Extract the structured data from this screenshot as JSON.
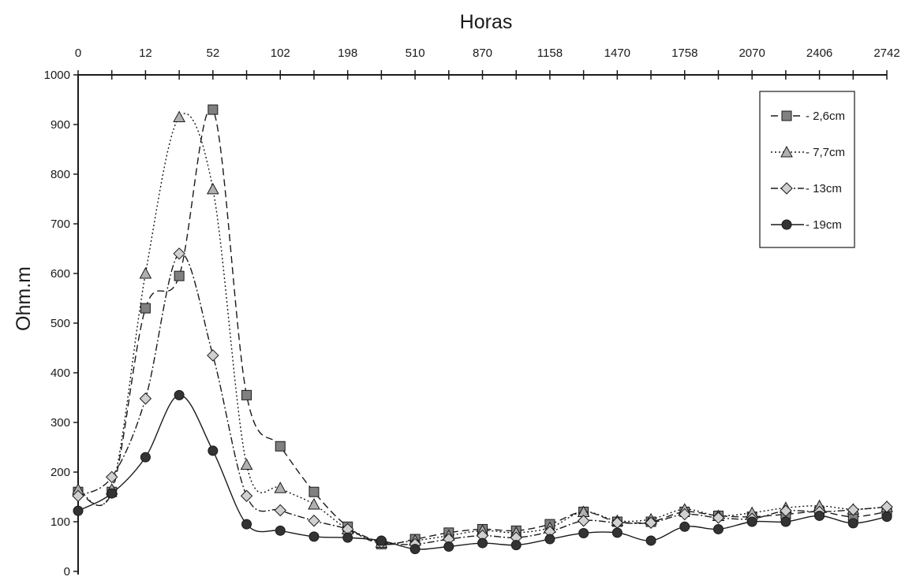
{
  "chart_data": {
    "type": "line",
    "title": "",
    "xlabel": "Horas",
    "ylabel": "Ohm.m",
    "x_tick_labels": [
      "0",
      "12",
      "52",
      "102",
      "198",
      "510",
      "870",
      "1158",
      "1470",
      "1758",
      "2070",
      "2406",
      "2742"
    ],
    "ylim": [
      0,
      1000
    ],
    "y_ticks": [
      0,
      100,
      200,
      300,
      400,
      500,
      600,
      700,
      800,
      900,
      1000
    ],
    "grid": false,
    "legend_position": "top-right",
    "series": [
      {
        "name": "- 2,6cm",
        "marker": "square",
        "dash": "dashed",
        "color": "#808080",
        "values": [
          160,
          160,
          530,
          595,
          930,
          355,
          252,
          160,
          90,
          55,
          65,
          78,
          85,
          82,
          95,
          120,
          100,
          100,
          120,
          112,
          110,
          115,
          120,
          110,
          120
        ]
      },
      {
        "name": "- 7,7cm",
        "marker": "triangle",
        "dash": "dotted",
        "color": "#b0b0b0",
        "values": [
          165,
          165,
          600,
          915,
          770,
          215,
          168,
          135,
          85,
          58,
          62,
          72,
          82,
          78,
          88,
          120,
          102,
          105,
          125,
          112,
          118,
          128,
          132,
          125,
          130
        ]
      },
      {
        "name": "- 13cm",
        "marker": "diamond",
        "dash": "dashdot",
        "color": "#d0d0d0",
        "values": [
          152,
          190,
          348,
          640,
          435,
          152,
          123,
          102,
          85,
          58,
          55,
          65,
          72,
          68,
          80,
          102,
          98,
          98,
          115,
          108,
          106,
          122,
          120,
          124,
          130
        ]
      },
      {
        "name": "- 19cm",
        "marker": "circle",
        "dash": "solid",
        "color": "#333333",
        "values": [
          122,
          157,
          230,
          355,
          243,
          95,
          82,
          70,
          68,
          62,
          45,
          50,
          57,
          53,
          65,
          77,
          78,
          62,
          90,
          85,
          100,
          100,
          112,
          97,
          110
        ]
      }
    ]
  }
}
